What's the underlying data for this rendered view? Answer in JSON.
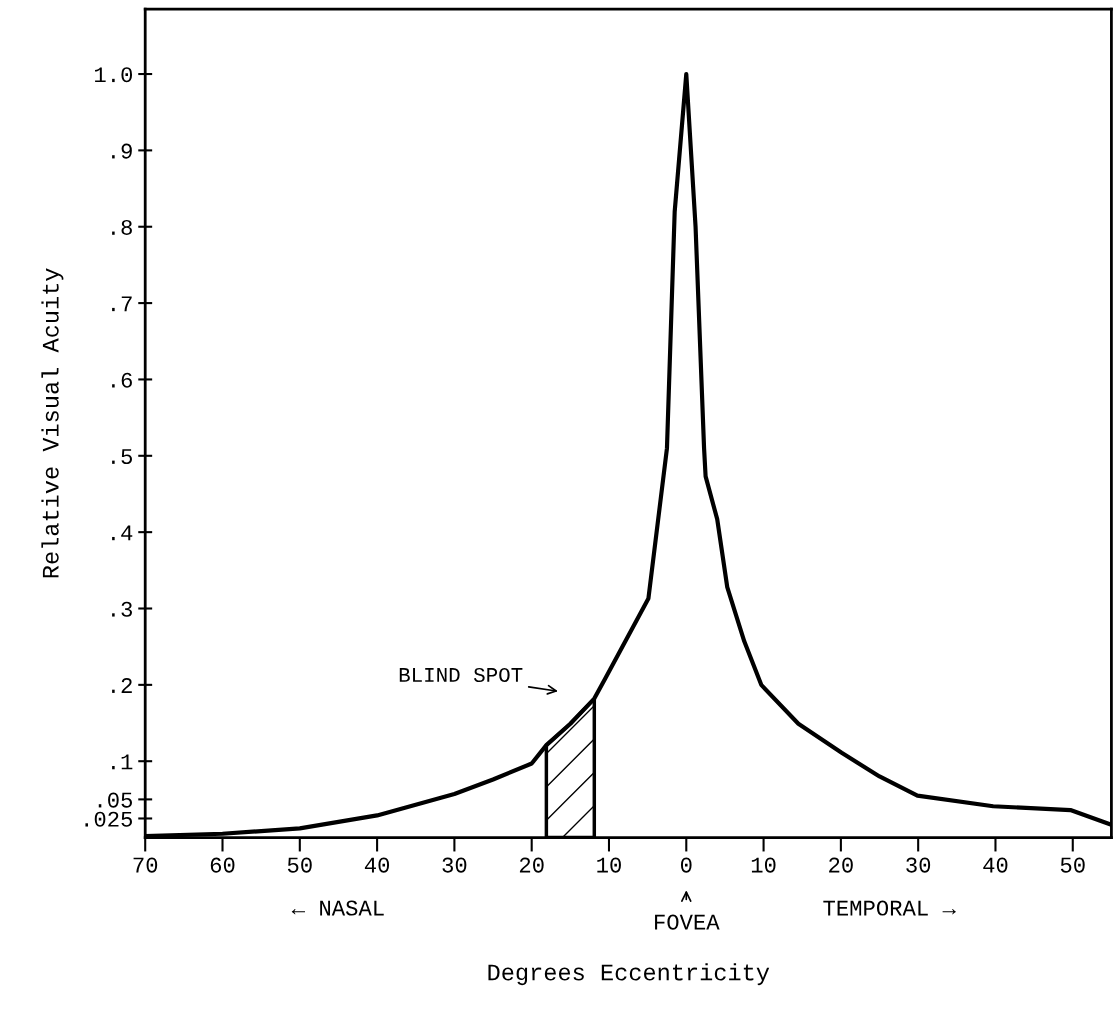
{
  "chart_data": {
    "type": "line",
    "xlabel": "Degrees Eccentricity",
    "ylabel": "Relative Visual Acuity",
    "series": [
      {
        "color": "#000000",
        "x": [
          -70,
          -60,
          -50,
          -40,
          -30,
          -25,
          -20,
          -18.1,
          -15,
          -11.9,
          -10.5,
          -4.9,
          -2.5,
          -1.5,
          0,
          1.2,
          2.3,
          2.5,
          4,
          5.3,
          7.5,
          9.7,
          14.5,
          20.1,
          25,
          29.9,
          39.7,
          49.7,
          54.9
        ],
        "values": [
          0.002,
          0.005,
          0.012,
          0.029,
          0.057,
          0.076,
          0.097,
          0.121,
          0.149,
          0.182,
          0.208,
          0.313,
          0.51,
          0.82,
          1.0,
          0.8,
          0.51,
          0.473,
          0.417,
          0.328,
          0.257,
          0.2,
          0.149,
          0.111,
          0.08,
          0.055,
          0.041,
          0.036,
          0.017
        ]
      },
      {
        "type": "area",
        "name": "BLIND SPOT",
        "color": "#000000",
        "x": [
          -18.1,
          -15,
          -11.9
        ],
        "values": [
          0.121,
          0.149,
          0.182
        ]
      }
    ],
    "annotations": [
      "← NASAL",
      "FOVEA",
      "TEMPORAL →"
    ],
    "xlim": [
      -70,
      55
    ],
    "xticks": [
      {
        "value": -70,
        "label": "70"
      },
      {
        "value": -60,
        "label": "60"
      },
      {
        "value": -50,
        "label": "50"
      },
      {
        "value": -40,
        "label": "40"
      },
      {
        "value": -30,
        "label": "30"
      },
      {
        "value": -20,
        "label": "20"
      },
      {
        "value": -10,
        "label": "10"
      },
      0,
      10,
      20,
      30,
      40,
      50
    ],
    "ylim": [
      0,
      1.085
    ],
    "yticks": [
      {
        "value": 0.025,
        "label": ".025"
      },
      {
        "value": 0.05,
        "label": ".05"
      },
      {
        "value": 0.1,
        "label": ".1"
      },
      {
        "value": 0.2,
        "label": ".2"
      },
      {
        "value": 0.3,
        "label": ".3"
      },
      {
        "value": 0.4,
        "label": ".4"
      },
      {
        "value": 0.5,
        "label": ".5"
      },
      {
        "value": 0.6,
        "label": ".6"
      },
      {
        "value": 0.7,
        "label": ".7"
      },
      {
        "value": 0.8,
        "label": ".8"
      },
      {
        "value": 0.9,
        "label": ".9"
      },
      {
        "value": 1.0,
        "label": "1.0"
      }
    ],
    "marker": "none",
    "line_style": "solid",
    "grid": false,
    "legend": false
  }
}
